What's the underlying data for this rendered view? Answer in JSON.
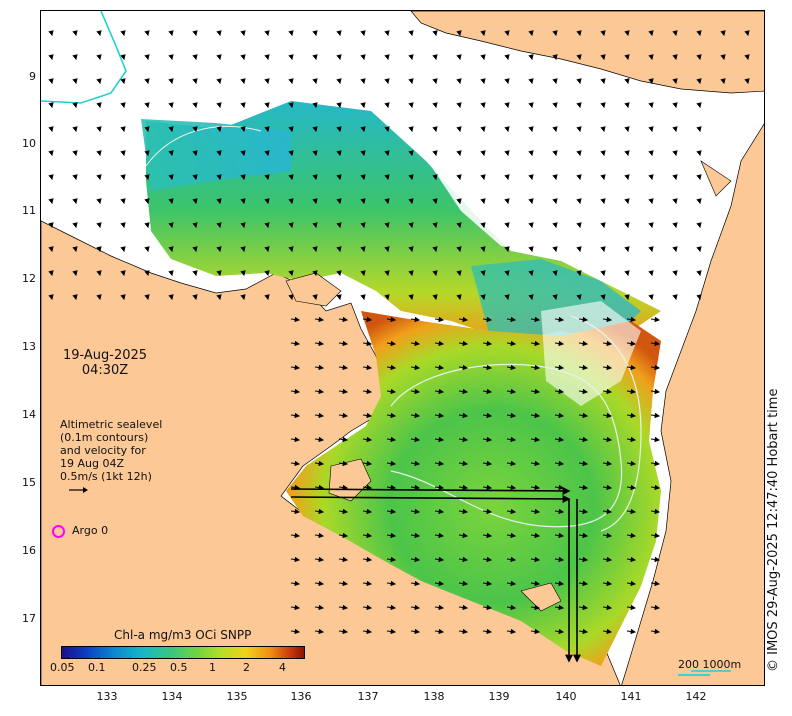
{
  "title": {
    "date": "19-Aug-2025",
    "time": "04:30Z"
  },
  "altimetry": {
    "line1": "Altimetric sealevel",
    "line2": "(0.1m contours)",
    "line3": "and velocity for",
    "line4": "19 Aug 04Z",
    "line5": "0.5m/s (1kt 12h)"
  },
  "argo": {
    "label": "Argo 0",
    "color": "#ff00ff"
  },
  "colorbar": {
    "title": "Chl-a mg/m3 OCi SNPP",
    "ticks": [
      "0.05",
      "0.1",
      "0.25",
      "0.5",
      "1",
      "2",
      "4"
    ]
  },
  "axes": {
    "latitude_labels": [
      "9",
      "10",
      "11",
      "12",
      "13",
      "14",
      "15",
      "16",
      "17"
    ],
    "longitude_labels": [
      "133",
      "134",
      "135",
      "136",
      "137",
      "138",
      "139",
      "140",
      "141",
      "142"
    ]
  },
  "scale": {
    "label": "200  1000m",
    "color": "#3fd0d0"
  },
  "credit": "© IMOS 29-Aug-2025 12:47:40 Hobart time",
  "colors": {
    "land": "#fcc896",
    "ocean_no_data": "#ffffff",
    "coast": "#000000"
  }
}
